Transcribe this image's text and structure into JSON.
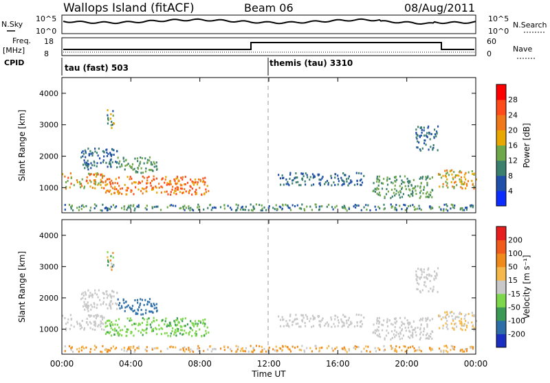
{
  "header": {
    "station": "Wallops Island (fitACF)",
    "beam": "Beam 06",
    "date": "08/Aug/2011"
  },
  "summary_panels": {
    "nsky_label": "N.Sky",
    "nsky_ticks": [
      "10^5",
      "10^0"
    ],
    "nsearch_label": "N.Search",
    "nsearch_ticks": [
      "10^5",
      "10^0"
    ],
    "freq_label": "Freq.",
    "freq_unit": "[MHz]",
    "freq_ticks": [
      "18",
      "8"
    ],
    "nave_label": "Nave",
    "nave_ticks": [
      "60",
      "0"
    ],
    "cpid_label": "CPID",
    "cpid_modes": [
      "tau (fast) 503",
      "themis (tau) 3310"
    ]
  },
  "chart_data": [
    {
      "type": "heatmap",
      "name": "power",
      "ylabel": "Slant Range [km]",
      "yticks": [
        1000,
        2000,
        3000,
        4000
      ],
      "ylim": [
        200,
        4500
      ],
      "colorbar_label": "Power [dB]",
      "colorbar_ticks": [
        4,
        8,
        12,
        16,
        20,
        24,
        28
      ],
      "colorbar_colors": [
        "#0a2cff",
        "#1f4fa8",
        "#3b7f6d",
        "#6fa84a",
        "#e8a800",
        "#f07818",
        "#ff4a1a",
        "#ff0000"
      ]
    },
    {
      "type": "heatmap",
      "name": "velocity",
      "ylabel": "Slant Range [km]",
      "yticks": [
        1000,
        2000,
        3000,
        4000
      ],
      "ylim": [
        200,
        4500
      ],
      "xlabel": "Time UT",
      "xticks": [
        "00:00",
        "04:00",
        "08:00",
        "12:00",
        "16:00",
        "20:00",
        "00:00"
      ],
      "xlim": [
        0,
        24
      ],
      "colorbar_label": "Velocity [m s⁻¹]",
      "colorbar_ticks": [
        200,
        100,
        50,
        15,
        -15,
        -50,
        -100,
        -200
      ],
      "colorbar_colors": [
        "#1a2fbf",
        "#2e6ea8",
        "#3a9a55",
        "#7cd84a",
        "#c8c8c8",
        "#f5b84a",
        "#f08a1a",
        "#f05a1a",
        "#e81e1e"
      ]
    }
  ]
}
